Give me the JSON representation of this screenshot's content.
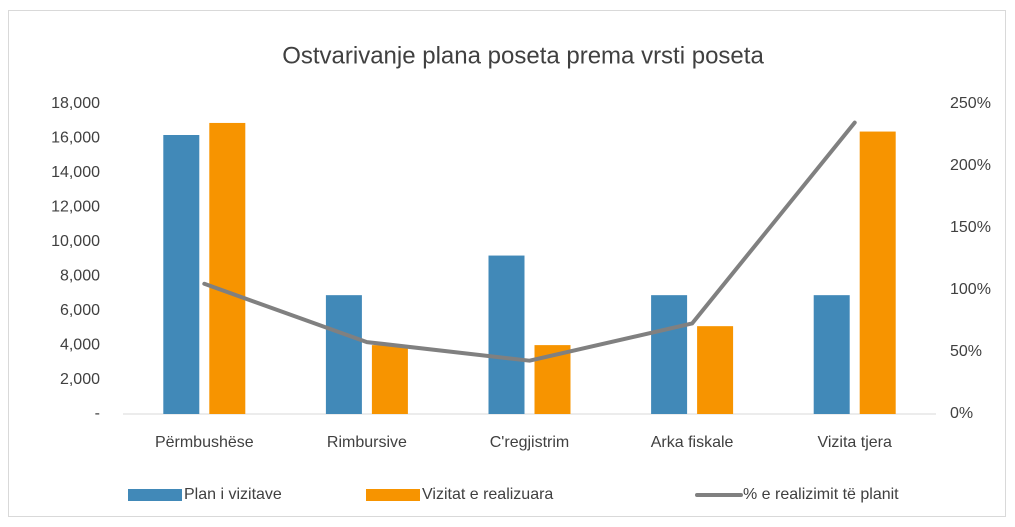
{
  "chart_data": {
    "type": "bar_line",
    "title": "Ostvarivanje plana poseta prema vrsti poseta",
    "categories": [
      "Përmbushëse",
      "Rimbursive",
      "C'regjistrim",
      "Arka fiskale",
      "Vizita tjera"
    ],
    "series": [
      {
        "name": "Plan i vizitave",
        "type": "bar",
        "color": "#4189b8",
        "values": [
          16200,
          6900,
          9200,
          6900,
          6900
        ]
      },
      {
        "name": "Vizitat e realizuara",
        "type": "bar",
        "color": "#f79400",
        "values": [
          16900,
          4000,
          4000,
          5100,
          16400
        ]
      },
      {
        "name": "% e realizimit të planit",
        "type": "line",
        "axis": "y2",
        "color": "#808080",
        "values": [
          105,
          58,
          43,
          73,
          235
        ]
      }
    ],
    "ylim": [
      0,
      18000
    ],
    "yticks": [
      {
        "value": 0,
        "label": "-"
      },
      {
        "value": 2000,
        "label": "2,000"
      },
      {
        "value": 4000,
        "label": "4,000"
      },
      {
        "value": 6000,
        "label": "6,000"
      },
      {
        "value": 8000,
        "label": "8,000"
      },
      {
        "value": 10000,
        "label": "10,000"
      },
      {
        "value": 12000,
        "label": "12,000"
      },
      {
        "value": 14000,
        "label": "14,000"
      },
      {
        "value": 16000,
        "label": "16,000"
      },
      {
        "value": 18000,
        "label": "18,000"
      }
    ],
    "y2lim": [
      0,
      250
    ],
    "y2ticks": [
      {
        "value": 0,
        "label": "0%"
      },
      {
        "value": 50,
        "label": "50%"
      },
      {
        "value": 100,
        "label": "100%"
      },
      {
        "value": 150,
        "label": "150%"
      },
      {
        "value": 200,
        "label": "200%"
      },
      {
        "value": 250,
        "label": "250%"
      }
    ],
    "grid": false,
    "legend": "bottom"
  }
}
